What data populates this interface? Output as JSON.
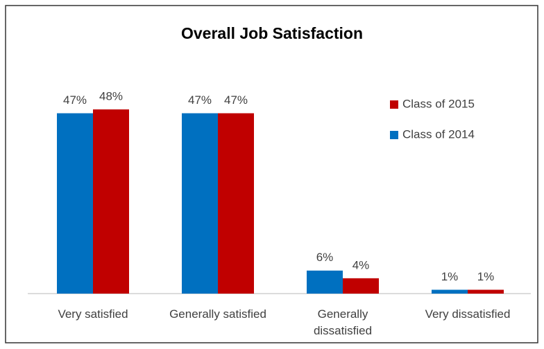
{
  "chart_data": {
    "type": "bar",
    "title": "Overall Job Satisfaction",
    "categories": [
      "Very satisfied",
      "Generally satisfied",
      "Generally dissatisfied",
      "Very dissatisfied"
    ],
    "series": [
      {
        "name": "Class of 2014",
        "color": "#0070c0",
        "values": [
          47,
          47,
          6,
          1
        ],
        "value_labels": [
          "47%",
          "47%",
          "6%",
          "1%"
        ]
      },
      {
        "name": "Class of 2015",
        "color": "#c00000",
        "values": [
          48,
          47,
          4,
          1
        ],
        "value_labels": [
          "48%",
          "47%",
          "4%",
          "1%"
        ]
      }
    ],
    "legend": "top-right",
    "grid": false
  }
}
